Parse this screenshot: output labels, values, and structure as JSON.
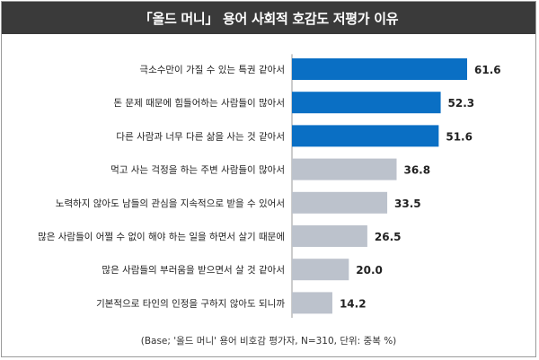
{
  "title": "「올드 머니」 용어 사회적 호감도 저평가 이유",
  "footnote": "(Base; '올드 머니' 용어 비호감 평가자, N=310, 단위: 중복 %)",
  "colors": {
    "highlight": "#0a6fc4",
    "muted": "#bcc2cc",
    "title_bg": "#3a3a3a"
  },
  "chart_data": {
    "type": "bar",
    "orientation": "horizontal",
    "title": "「올드 머니」 용어 사회적 호감도 저평가 이유",
    "categories": [
      "극소수만이 가질 수 있는 특권 같아서",
      "돈 문제 때문에 힘들어하는 사람들이 많아서",
      "다른 사람과 너무 다른 삶을 사는 것 같아서",
      "먹고 사는 걱정을 하는 주변 사람들이 많아서",
      "노력하지 않아도 남들의 관심을 지속적으로 받을 수 있어서",
      "많은 사람들이 어쩔 수 없이 해야 하는 일을 하면서 살기 때문에",
      "많은 사람들의 부러움을 받으면서 살 것 같아서",
      "기본적으로 타인의 인정을 구하지 않아도 되니까"
    ],
    "values": [
      61.6,
      52.3,
      51.6,
      36.8,
      33.5,
      26.5,
      20.0,
      14.2
    ],
    "value_labels": [
      "61.6",
      "52.3",
      "51.6",
      "36.8",
      "33.5",
      "26.5",
      "20.0",
      "14.2"
    ],
    "highlighted_count": 3,
    "xlim": [
      0,
      61.6
    ],
    "grid": false,
    "legend": "none",
    "unit": "%"
  }
}
